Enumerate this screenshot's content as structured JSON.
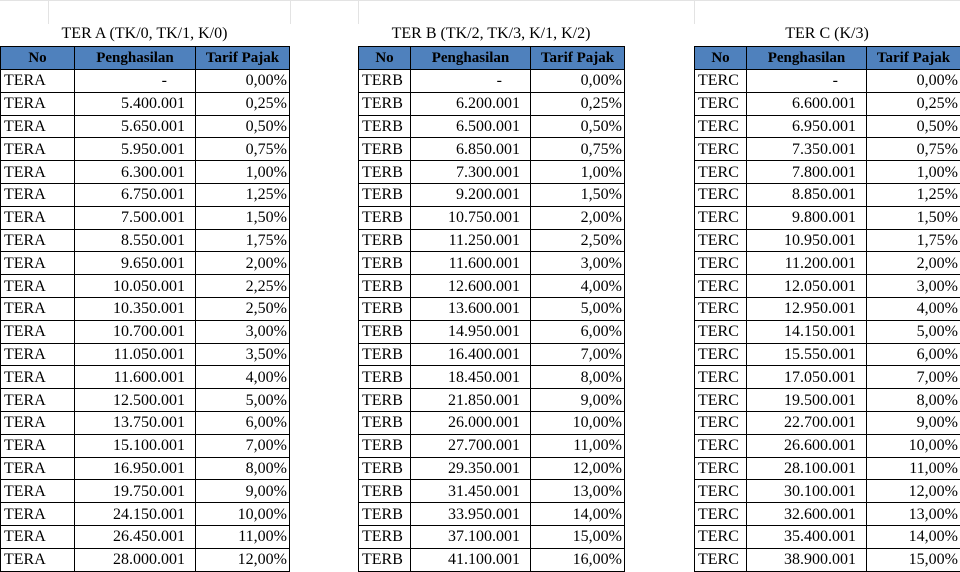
{
  "tables": [
    {
      "title": "TER A (TK/0, TK/1, K/0)",
      "headers": [
        "No",
        "Penghasilan",
        "Tarif Pajak"
      ],
      "rows": [
        [
          "TERA",
          "-",
          "0,00%"
        ],
        [
          "TERA",
          "5.400.001",
          "0,25%"
        ],
        [
          "TERA",
          "5.650.001",
          "0,50%"
        ],
        [
          "TERA",
          "5.950.001",
          "0,75%"
        ],
        [
          "TERA",
          "6.300.001",
          "1,00%"
        ],
        [
          "TERA",
          "6.750.001",
          "1,25%"
        ],
        [
          "TERA",
          "7.500.001",
          "1,50%"
        ],
        [
          "TERA",
          "8.550.001",
          "1,75%"
        ],
        [
          "TERA",
          "9.650.001",
          "2,00%"
        ],
        [
          "TERA",
          "10.050.001",
          "2,25%"
        ],
        [
          "TERA",
          "10.350.001",
          "2,50%"
        ],
        [
          "TERA",
          "10.700.001",
          "3,00%"
        ],
        [
          "TERA",
          "11.050.001",
          "3,50%"
        ],
        [
          "TERA",
          "11.600.001",
          "4,00%"
        ],
        [
          "TERA",
          "12.500.001",
          "5,00%"
        ],
        [
          "TERA",
          "13.750.001",
          "6,00%"
        ],
        [
          "TERA",
          "15.100.001",
          "7,00%"
        ],
        [
          "TERA",
          "16.950.001",
          "8,00%"
        ],
        [
          "TERA",
          "19.750.001",
          "9,00%"
        ],
        [
          "TERA",
          "24.150.001",
          "10,00%"
        ],
        [
          "TERA",
          "26.450.001",
          "11,00%"
        ],
        [
          "TERA",
          "28.000.001",
          "12,00%"
        ]
      ]
    },
    {
      "title": "TER B (TK/2, TK/3, K/1, K/2)",
      "headers": [
        "No",
        "Penghasilan",
        "Tarif Pajak"
      ],
      "rows": [
        [
          "TERB",
          "-",
          "0,00%"
        ],
        [
          "TERB",
          "6.200.001",
          "0,25%"
        ],
        [
          "TERB",
          "6.500.001",
          "0,50%"
        ],
        [
          "TERB",
          "6.850.001",
          "0,75%"
        ],
        [
          "TERB",
          "7.300.001",
          "1,00%"
        ],
        [
          "TERB",
          "9.200.001",
          "1,50%"
        ],
        [
          "TERB",
          "10.750.001",
          "2,00%"
        ],
        [
          "TERB",
          "11.250.001",
          "2,50%"
        ],
        [
          "TERB",
          "11.600.001",
          "3,00%"
        ],
        [
          "TERB",
          "12.600.001",
          "4,00%"
        ],
        [
          "TERB",
          "13.600.001",
          "5,00%"
        ],
        [
          "TERB",
          "14.950.001",
          "6,00%"
        ],
        [
          "TERB",
          "16.400.001",
          "7,00%"
        ],
        [
          "TERB",
          "18.450.001",
          "8,00%"
        ],
        [
          "TERB",
          "21.850.001",
          "9,00%"
        ],
        [
          "TERB",
          "26.000.001",
          "10,00%"
        ],
        [
          "TERB",
          "27.700.001",
          "11,00%"
        ],
        [
          "TERB",
          "29.350.001",
          "12,00%"
        ],
        [
          "TERB",
          "31.450.001",
          "13,00%"
        ],
        [
          "TERB",
          "33.950.001",
          "14,00%"
        ],
        [
          "TERB",
          "37.100.001",
          "15,00%"
        ],
        [
          "TERB",
          "41.100.001",
          "16,00%"
        ]
      ]
    },
    {
      "title": "TER C (K/3)",
      "headers": [
        "No",
        "Penghasilan",
        "Tarif Pajak"
      ],
      "rows": [
        [
          "TERC",
          "-",
          "0,00%"
        ],
        [
          "TERC",
          "6.600.001",
          "0,25%"
        ],
        [
          "TERC",
          "6.950.001",
          "0,50%"
        ],
        [
          "TERC",
          "7.350.001",
          "0,75%"
        ],
        [
          "TERC",
          "7.800.001",
          "1,00%"
        ],
        [
          "TERC",
          "8.850.001",
          "1,25%"
        ],
        [
          "TERC",
          "9.800.001",
          "1,50%"
        ],
        [
          "TERC",
          "10.950.001",
          "1,75%"
        ],
        [
          "TERC",
          "11.200.001",
          "2,00%"
        ],
        [
          "TERC",
          "12.050.001",
          "3,00%"
        ],
        [
          "TERC",
          "12.950.001",
          "4,00%"
        ],
        [
          "TERC",
          "14.150.001",
          "5,00%"
        ],
        [
          "TERC",
          "15.550.001",
          "6,00%"
        ],
        [
          "TERC",
          "17.050.001",
          "7,00%"
        ],
        [
          "TERC",
          "19.500.001",
          "8,00%"
        ],
        [
          "TERC",
          "22.700.001",
          "9,00%"
        ],
        [
          "TERC",
          "26.600.001",
          "10,00%"
        ],
        [
          "TERC",
          "28.100.001",
          "11,00%"
        ],
        [
          "TERC",
          "30.100.001",
          "12,00%"
        ],
        [
          "TERC",
          "32.600.001",
          "13,00%"
        ],
        [
          "TERC",
          "35.400.001",
          "14,00%"
        ],
        [
          "TERC",
          "38.900.001",
          "15,00%"
        ]
      ]
    }
  ],
  "colors": {
    "header_bg": "#4f81bd",
    "grid_line": "#e3e3e3",
    "cell_border": "#000000"
  }
}
